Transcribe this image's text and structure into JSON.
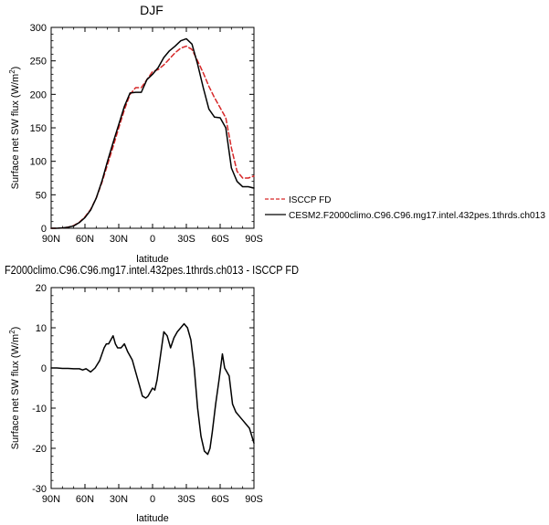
{
  "chart_data": [
    {
      "type": "line",
      "title": "DJF",
      "ylabel": "Surface net SW flux (W/m",
      "ylabel_sup": "2",
      "ylabel_end": ")",
      "xlabel": "latitude",
      "xlim": [
        90,
        -90
      ],
      "ylim": [
        0,
        300
      ],
      "x_ticks": [
        90,
        60,
        30,
        0,
        -30,
        -60,
        -90
      ],
      "x_tick_labels": [
        "90N",
        "60N",
        "30N",
        "0",
        "30S",
        "60S",
        "90S"
      ],
      "y_ticks": [
        0,
        50,
        100,
        150,
        200,
        250,
        300
      ],
      "y_tick_labels": [
        "0",
        "50",
        "100",
        "150",
        "200",
        "250",
        "300"
      ],
      "grid": false,
      "legend_position": "right",
      "series": [
        {
          "name": "ISCCP FD",
          "color": "#d62728",
          "dash": "dashed",
          "x": [
            90,
            85,
            80,
            75,
            70,
            65,
            60,
            55,
            50,
            45,
            40,
            35,
            30,
            25,
            20,
            15,
            10,
            5,
            0,
            -5,
            -10,
            -15,
            -20,
            -25,
            -30,
            -35,
            -40,
            -45,
            -50,
            -55,
            -60,
            -65,
            -70,
            -75,
            -80,
            -85,
            -90
          ],
          "y": [
            0,
            0,
            0.5,
            1.5,
            4,
            9,
            17,
            28,
            45,
            68,
            95,
            122,
            150,
            177,
            200,
            210,
            210,
            222,
            234,
            237,
            244,
            253,
            262,
            269,
            272,
            267,
            250,
            232,
            212,
            195,
            180,
            165,
            120,
            85,
            75,
            75,
            78
          ]
        },
        {
          "name": "CESM2.F2000climo.C96.C96.mg17.intel.432pes.1thrds.ch013",
          "color": "#000000",
          "dash": "solid",
          "x": [
            90,
            85,
            80,
            75,
            70,
            65,
            60,
            55,
            50,
            45,
            40,
            35,
            30,
            25,
            20,
            15,
            10,
            5,
            0,
            -5,
            -10,
            -15,
            -20,
            -25,
            -30,
            -35,
            -40,
            -45,
            -50,
            -55,
            -60,
            -65,
            -70,
            -75,
            -80,
            -85,
            -90
          ],
          "y": [
            0,
            0,
            0.5,
            1.5,
            3.5,
            8.5,
            16,
            27,
            45,
            70,
            100,
            128,
            155,
            182,
            202,
            203,
            203,
            222,
            230,
            240,
            255,
            265,
            272,
            280,
            283,
            275,
            245,
            210,
            178,
            166,
            165,
            150,
            90,
            70,
            62,
            62,
            60
          ]
        }
      ]
    },
    {
      "type": "line",
      "title": "F2000climo.C96.C96.mg17.intel.432pes.1thrds.ch013 - ISCCP FD",
      "ylabel": "Surface net SW flux (W/m",
      "ylabel_sup": "2",
      "ylabel_end": ")",
      "xlabel": "latitude",
      "xlim": [
        90,
        -90
      ],
      "ylim": [
        -30,
        20
      ],
      "x_ticks": [
        90,
        60,
        30,
        0,
        -30,
        -60,
        -90
      ],
      "x_tick_labels": [
        "90N",
        "60N",
        "30N",
        "0",
        "30S",
        "60S",
        "90S"
      ],
      "y_ticks": [
        -30,
        -20,
        -10,
        0,
        10,
        20
      ],
      "y_tick_labels": [
        "-30",
        "-20",
        "-10",
        "0",
        "10",
        "20"
      ],
      "grid": false,
      "series": [
        {
          "color": "#000000",
          "dash": "solid",
          "x": [
            90,
            85,
            80,
            75,
            70,
            65,
            62,
            59,
            55,
            51,
            47,
            43,
            41,
            39,
            35,
            33,
            31,
            28,
            25,
            22,
            18,
            15,
            12,
            9,
            6,
            4,
            2,
            0,
            -2,
            -4,
            -7,
            -10,
            -13,
            -16,
            -19,
            -22,
            -25,
            -28,
            -31,
            -34,
            -37,
            -40,
            -43,
            -46,
            -49,
            -51,
            -53,
            -56,
            -59,
            -62,
            -64,
            -66,
            -68,
            -71,
            -74,
            -77,
            -80,
            -83,
            -86,
            -90
          ],
          "y": [
            0,
            0,
            -0.1,
            -0.1,
            -0.2,
            -0.2,
            -0.5,
            -0.2,
            -1,
            0,
            1.8,
            5,
            6,
            6,
            8,
            6,
            5,
            5,
            6,
            4,
            2,
            -1,
            -4,
            -7,
            -7.5,
            -7,
            -6,
            -5,
            -5.5,
            -3,
            3,
            9,
            8,
            5,
            7.5,
            9,
            10,
            11,
            10,
            7,
            0,
            -10,
            -17,
            -20.7,
            -21.5,
            -20,
            -16,
            -9,
            -3,
            3.5,
            0,
            -1,
            -2,
            -9,
            -11,
            -12,
            -13,
            -14,
            -15,
            -18.7
          ]
        }
      ]
    }
  ]
}
